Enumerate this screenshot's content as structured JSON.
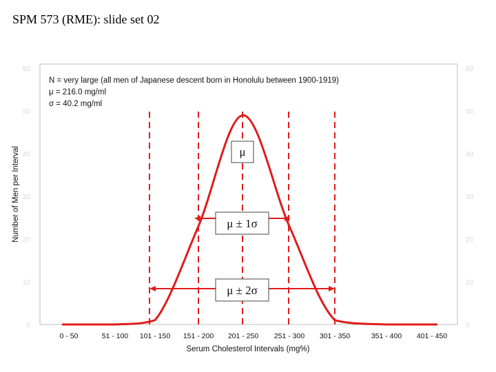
{
  "slide": {
    "title": "SPM 573 (RME): slide set 02"
  },
  "chart_data": {
    "type": "line",
    "xlabel": "Serum Cholesterol Intervals (mg%)",
    "ylabel": "Number of Men per Interval",
    "categories": [
      "0 - 50",
      "51 - 100",
      "101 - 150",
      "151 - 200",
      "201 - 250",
      "251 - 300",
      "301 - 350",
      "351 - 400",
      "401 - 450"
    ],
    "yticks": [
      0,
      10,
      20,
      30,
      40,
      50,
      60
    ],
    "ylim": [
      0,
      60
    ],
    "grid": false,
    "series": [
      {
        "values": [
          0,
          0,
          1,
          23,
          49,
          23,
          1,
          0,
          0
        ]
      }
    ],
    "annotations": {
      "lines": [
        "N = very large (all men of Japanese descent born in Honolulu between 1900-1919)",
        "μ = 216.0 mg/ml",
        "σ = 40.2 mg/ml"
      ],
      "mean": 216.0,
      "sd": 40.2,
      "mu_label": "μ",
      "one_sd_label": "μ ± 1σ",
      "two_sd_label": "μ ± 2σ"
    },
    "colors": {
      "curve": "#e01b1b",
      "frame": "#c8c8c8"
    }
  }
}
